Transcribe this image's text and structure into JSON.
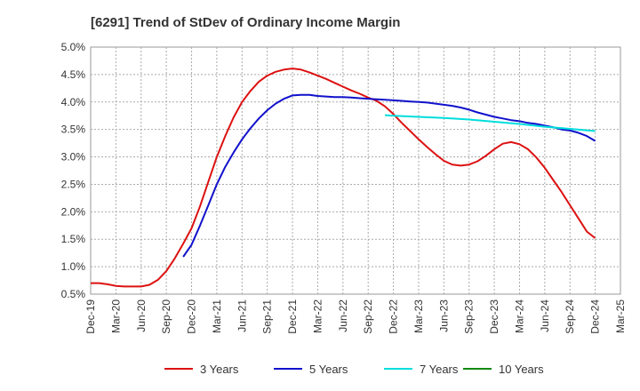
{
  "chart_data": {
    "type": "line",
    "title": "[6291]  Trend of StDev of Ordinary Income Margin",
    "xlabel": "",
    "ylabel": "",
    "x_ticks": [
      "Dec-19",
      "Mar-20",
      "Jun-20",
      "Sep-20",
      "Dec-20",
      "Mar-21",
      "Jun-21",
      "Sep-21",
      "Dec-21",
      "Mar-22",
      "Jun-22",
      "Sep-22",
      "Dec-22",
      "Mar-23",
      "Jun-23",
      "Sep-23",
      "Dec-23",
      "Mar-24",
      "Jun-24",
      "Sep-24",
      "Dec-24",
      "Mar-25"
    ],
    "y_ticks": [
      "0.5%",
      "1.0%",
      "1.5%",
      "2.0%",
      "2.5%",
      "3.0%",
      "3.5%",
      "4.0%",
      "4.5%",
      "5.0%"
    ],
    "ylim": [
      0.5,
      5.0
    ],
    "grid": true,
    "legend_position": "bottom",
    "series": [
      {
        "name": "3 Years",
        "color": "#dd1111",
        "x": [
          "Dec-19",
          "Jan-20",
          "Feb-20",
          "Mar-20",
          "Apr-20",
          "May-20",
          "Jun-20",
          "Jul-20",
          "Aug-20",
          "Sep-20",
          "Oct-20",
          "Nov-20",
          "Dec-20",
          "Jan-21",
          "Feb-21",
          "Mar-21",
          "Apr-21",
          "May-21",
          "Jun-21",
          "Jul-21",
          "Aug-21",
          "Sep-21",
          "Oct-21",
          "Nov-21",
          "Dec-21",
          "Jan-22",
          "Feb-22",
          "Mar-22",
          "Apr-22",
          "May-22",
          "Jun-22",
          "Jul-22",
          "Aug-22",
          "Sep-22",
          "Oct-22",
          "Nov-22",
          "Dec-22",
          "Jan-23",
          "Feb-23",
          "Mar-23",
          "Apr-23",
          "May-23",
          "Jun-23",
          "Jul-23",
          "Aug-23",
          "Sep-23",
          "Oct-23",
          "Nov-23",
          "Dec-23",
          "Jan-24",
          "Feb-24",
          "Mar-24",
          "Apr-24",
          "May-24",
          "Jun-24",
          "Jul-24",
          "Aug-24",
          "Sep-24",
          "Oct-24",
          "Nov-24",
          "Dec-24"
        ],
        "values": [
          0.7,
          0.7,
          0.68,
          0.65,
          0.64,
          0.64,
          0.64,
          0.67,
          0.76,
          0.92,
          1.15,
          1.42,
          1.7,
          2.1,
          2.55,
          3.0,
          3.38,
          3.72,
          4.0,
          4.2,
          4.37,
          4.48,
          4.55,
          4.59,
          4.61,
          4.59,
          4.54,
          4.48,
          4.42,
          4.35,
          4.28,
          4.21,
          4.15,
          4.08,
          4.02,
          3.92,
          3.78,
          3.62,
          3.47,
          3.32,
          3.18,
          3.05,
          2.93,
          2.86,
          2.84,
          2.86,
          2.92,
          3.02,
          3.14,
          3.24,
          3.27,
          3.23,
          3.14,
          2.99,
          2.8,
          2.58,
          2.36,
          2.12,
          1.88,
          1.64,
          1.52
        ]
      },
      {
        "name": "5 Years",
        "color": "#1111cc",
        "x": [
          "Nov-20",
          "Dec-20",
          "Jan-21",
          "Feb-21",
          "Mar-21",
          "Apr-21",
          "May-21",
          "Jun-21",
          "Jul-21",
          "Aug-21",
          "Sep-21",
          "Oct-21",
          "Nov-21",
          "Dec-21",
          "Jan-22",
          "Feb-22",
          "Mar-22",
          "Apr-22",
          "May-22",
          "Jun-22",
          "Jul-22",
          "Aug-22",
          "Sep-22",
          "Oct-22",
          "Nov-22",
          "Dec-22",
          "Jan-23",
          "Feb-23",
          "Mar-23",
          "Apr-23",
          "May-23",
          "Jun-23",
          "Jul-23",
          "Aug-23",
          "Sep-23",
          "Oct-23",
          "Nov-23",
          "Dec-23",
          "Jan-24",
          "Feb-24",
          "Mar-24",
          "Apr-24",
          "May-24",
          "Jun-24",
          "Jul-24",
          "Aug-24",
          "Sep-24",
          "Oct-24",
          "Nov-24",
          "Dec-24"
        ],
        "values": [
          1.18,
          1.4,
          1.75,
          2.12,
          2.5,
          2.82,
          3.08,
          3.32,
          3.52,
          3.7,
          3.85,
          3.97,
          4.06,
          4.12,
          4.13,
          4.13,
          4.11,
          4.1,
          4.09,
          4.09,
          4.08,
          4.07,
          4.06,
          4.05,
          4.04,
          4.03,
          4.02,
          4.01,
          4.0,
          3.99,
          3.97,
          3.95,
          3.93,
          3.9,
          3.86,
          3.81,
          3.77,
          3.73,
          3.7,
          3.67,
          3.65,
          3.62,
          3.6,
          3.57,
          3.54,
          3.5,
          3.48,
          3.44,
          3.38,
          3.29
        ]
      },
      {
        "name": "7 Years",
        "color": "#00dddd",
        "x": [
          "Nov-22",
          "Dec-22",
          "Mar-23",
          "Jun-23",
          "Sep-23",
          "Dec-23",
          "Mar-24",
          "Jun-24",
          "Sep-24",
          "Dec-24"
        ],
        "values": [
          3.76,
          3.75,
          3.73,
          3.71,
          3.68,
          3.64,
          3.6,
          3.55,
          3.51,
          3.47
        ]
      },
      {
        "name": "10 Years",
        "color": "#118811",
        "x": [],
        "values": []
      }
    ]
  }
}
